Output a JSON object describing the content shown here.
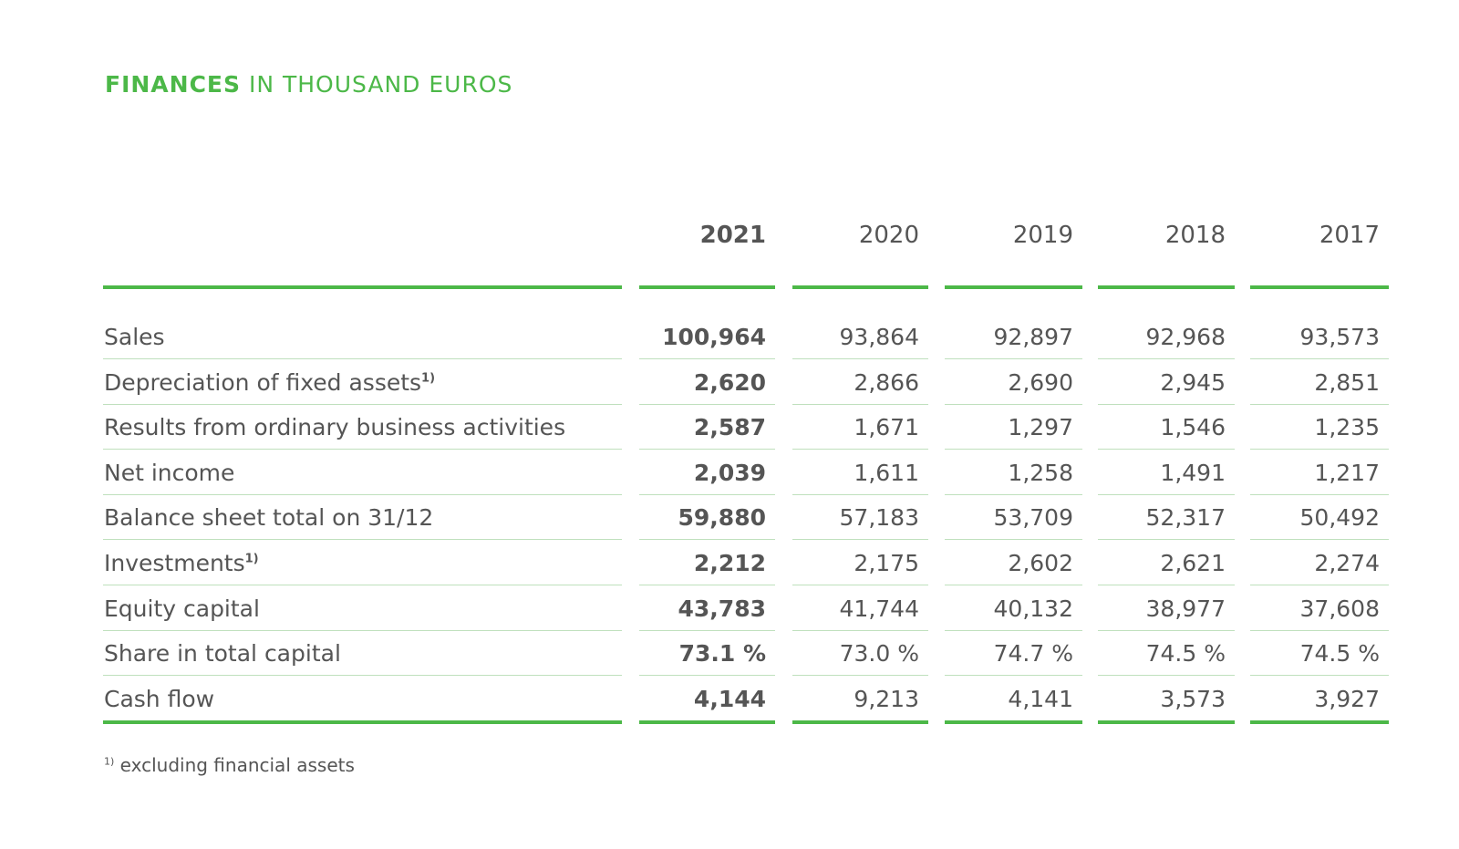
{
  "header": {
    "title_bold": "FINANCES",
    "title_rest": "IN THOUSAND EUROS"
  },
  "table": {
    "columns": [
      "2021",
      "2020",
      "2019",
      "2018",
      "2017"
    ],
    "rows": [
      {
        "label": "Sales",
        "values": [
          "100,964",
          "93,864",
          "92,897",
          "92,968",
          "93,573"
        ]
      },
      {
        "label": "Depreciation of fixed assets",
        "note": "1)",
        "values": [
          "2,620",
          "2,866",
          "2,690",
          "2,945",
          "2,851"
        ]
      },
      {
        "label": "Results from ordinary business activities",
        "values": [
          "2,587",
          "1,671",
          "1,297",
          "1,546",
          "1,235"
        ]
      },
      {
        "label": "Net income",
        "values": [
          "2,039",
          "1,611",
          "1,258",
          "1,491",
          "1,217"
        ]
      },
      {
        "label": "Balance sheet total on 31/12",
        "values": [
          "59,880",
          "57,183",
          "53,709",
          "52,317",
          "50,492"
        ]
      },
      {
        "label": "Investments",
        "note": "1)",
        "values": [
          "2,212",
          "2,175",
          "2,602",
          "2,621",
          "2,274"
        ]
      },
      {
        "label": "Equity capital",
        "values": [
          "43,783",
          "41,744",
          "40,132",
          "38,977",
          "37,608"
        ]
      },
      {
        "label": "Share in total capital",
        "values": [
          "73.1 %",
          "73.0 %",
          "74.7 %",
          "74.5 %",
          "74.5 %"
        ]
      },
      {
        "label": "Cash flow",
        "values": [
          "4,144",
          "9,213",
          "4,141",
          "3,573",
          "3,927"
        ]
      }
    ]
  },
  "footnote": {
    "marker": "1)",
    "text": "excluding financial assets"
  }
}
